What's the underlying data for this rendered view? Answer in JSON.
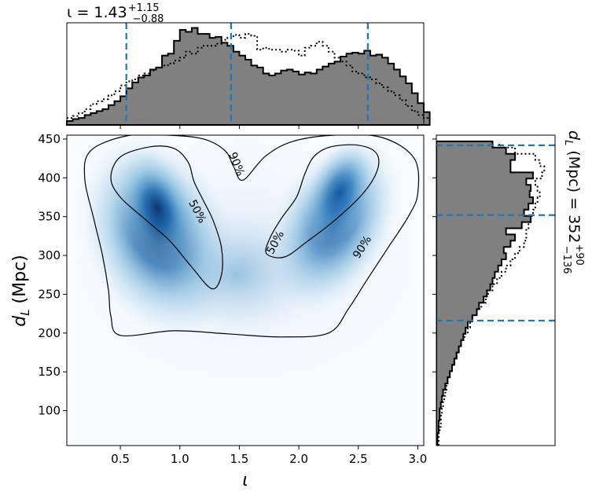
{
  "chart_data": [
    {
      "type": "heatmap",
      "panel": "joint",
      "xlabel": "ι",
      "ylabel_main": "d",
      "ylabel_sub": "L",
      "ylabel_unit": " (Mpc)",
      "xlim": [
        0.05,
        3.05
      ],
      "ylim": [
        55,
        455
      ],
      "xticks": [
        0.5,
        1.0,
        1.5,
        2.0,
        2.5,
        3.0
      ],
      "xtick_labels": [
        "0.5",
        "1.0",
        "1.5",
        "2.0",
        "2.5",
        "3.0"
      ],
      "yticks": [
        100,
        150,
        200,
        250,
        300,
        350,
        400,
        450
      ],
      "ytick_labels": [
        "100",
        "150",
        "200",
        "250",
        "300",
        "350",
        "400",
        "450"
      ],
      "colormap": "Blues",
      "density_peaks": [
        {
          "x": 0.82,
          "y": 365,
          "weight": 1.0
        },
        {
          "x": 2.3,
          "y": 390,
          "weight": 0.82
        }
      ],
      "contours": [
        {
          "label": "50%",
          "closed_regions": [
            [
              [
                1.27,
                257
              ],
              [
                1.1,
                285
              ],
              [
                0.92,
                318
              ],
              [
                0.72,
                345
              ],
              [
                0.5,
                375
              ],
              [
                0.42,
                400
              ],
              [
                0.5,
                427
              ],
              [
                0.75,
                440
              ],
              [
                0.95,
                438
              ],
              [
                1.07,
                420
              ],
              [
                1.12,
                395
              ],
              [
                1.2,
                370
              ],
              [
                1.28,
                345
              ],
              [
                1.35,
                310
              ],
              [
                1.35,
                275
              ]
            ],
            [
              [
                1.88,
                298
              ],
              [
                2.07,
                318
              ],
              [
                2.3,
                345
              ],
              [
                2.54,
                380
              ],
              [
                2.66,
                410
              ],
              [
                2.65,
                432
              ],
              [
                2.5,
                442
              ],
              [
                2.27,
                440
              ],
              [
                2.13,
                428
              ],
              [
                2.05,
                405
              ],
              [
                1.98,
                375
              ],
              [
                1.85,
                347
              ],
              [
                1.75,
                320
              ],
              [
                1.73,
                302
              ]
            ]
          ]
        },
        {
          "label": "90%",
          "closed_regions": [
            [
              [
                0.5,
                197
              ],
              [
                0.95,
                203
              ],
              [
                1.4,
                199
              ],
              [
                1.85,
                195
              ],
              [
                2.25,
                200
              ],
              [
                2.42,
                232
              ],
              [
                2.57,
                268
              ],
              [
                2.75,
                310
              ],
              [
                2.92,
                350
              ],
              [
                3.0,
                380
              ],
              [
                2.97,
                425
              ],
              [
                2.7,
                452
              ],
              [
                2.3,
                455
              ],
              [
                1.95,
                447
              ],
              [
                1.72,
                428
              ],
              [
                1.53,
                397
              ],
              [
                1.45,
                415
              ],
              [
                1.38,
                435
              ],
              [
                1.2,
                450
              ],
              [
                0.9,
                455
              ],
              [
                0.55,
                454
              ],
              [
                0.25,
                435
              ],
              [
                0.2,
                400
              ],
              [
                0.28,
                345
              ],
              [
                0.35,
                300
              ],
              [
                0.4,
                255
              ],
              [
                0.42,
                222
              ]
            ]
          ]
        }
      ]
    },
    {
      "type": "histogram",
      "panel": "top-marginal",
      "title_main": "ι = 1.43",
      "title_sup": "+1.15",
      "title_sub": "−0.88",
      "median": 1.43,
      "lower": 0.55,
      "upper": 2.58,
      "bin_width": 0.05,
      "x_start": 0.05,
      "series": [
        {
          "style": "filled",
          "values": [
            0.04,
            0.06,
            0.07,
            0.1,
            0.12,
            0.14,
            0.16,
            0.2,
            0.24,
            0.29,
            0.37,
            0.43,
            0.48,
            0.5,
            0.56,
            0.58,
            0.7,
            0.72,
            0.85,
            0.96,
            0.94,
            0.98,
            0.92,
            0.92,
            0.88,
            0.89,
            0.83,
            0.8,
            0.74,
            0.7,
            0.66,
            0.6,
            0.58,
            0.52,
            0.5,
            0.52,
            0.55,
            0.56,
            0.54,
            0.51,
            0.53,
            0.52,
            0.56,
            0.59,
            0.62,
            0.64,
            0.69,
            0.72,
            0.73,
            0.72,
            0.75,
            0.7,
            0.71,
            0.68,
            0.62,
            0.56,
            0.49,
            0.42,
            0.32,
            0.22,
            0.13
          ]
        },
        {
          "style": "dotted",
          "values": [
            0.07,
            0.09,
            0.12,
            0.16,
            0.21,
            0.24,
            0.26,
            0.3,
            0.34,
            0.4,
            0.44,
            0.46,
            0.5,
            0.52,
            0.55,
            0.58,
            0.6,
            0.62,
            0.65,
            0.68,
            0.74,
            0.72,
            0.78,
            0.8,
            0.8,
            0.82,
            0.86,
            0.88,
            0.91,
            0.88,
            0.92,
            0.9,
            0.76,
            0.78,
            0.76,
            0.76,
            0.74,
            0.76,
            0.75,
            0.7,
            0.78,
            0.8,
            0.84,
            0.8,
            0.74,
            0.68,
            0.64,
            0.6,
            0.54,
            0.52,
            0.48,
            0.46,
            0.42,
            0.38,
            0.34,
            0.3,
            0.25,
            0.19,
            0.14,
            0.1,
            0.07
          ]
        }
      ],
      "quantile_lines": [
        0.55,
        1.43,
        2.58
      ]
    },
    {
      "type": "histogram",
      "panel": "right-marginal",
      "orientation": "horizontal",
      "side_label_main": "d",
      "side_label_sub": "L",
      "side_label_rest": " (Mpc) = 352",
      "side_label_sup": "+90",
      "side_label_sub2": "−136",
      "median": 352,
      "lower": 216,
      "upper": 442,
      "bin_height": 8,
      "y_start": 55,
      "series": [
        {
          "style": "filled",
          "values": [
            0.01,
            0.01,
            0.02,
            0.02,
            0.03,
            0.03,
            0.04,
            0.05,
            0.06,
            0.08,
            0.1,
            0.12,
            0.14,
            0.16,
            0.18,
            0.2,
            0.22,
            0.24,
            0.26,
            0.28,
            0.32,
            0.36,
            0.38,
            0.42,
            0.45,
            0.48,
            0.5,
            0.52,
            0.55,
            0.58,
            0.62,
            0.6,
            0.66,
            0.7,
            0.62,
            0.76,
            0.84,
            0.78,
            0.82,
            0.86,
            0.83,
            0.84,
            0.8,
            0.86,
            0.66,
            0.66,
            0.7,
            0.62,
            0.5
          ]
        },
        {
          "style": "dotted",
          "values": [
            0.02,
            0.02,
            0.03,
            0.04,
            0.04,
            0.05,
            0.06,
            0.07,
            0.08,
            0.09,
            0.1,
            0.12,
            0.14,
            0.16,
            0.18,
            0.2,
            0.22,
            0.25,
            0.28,
            0.3,
            0.32,
            0.36,
            0.4,
            0.44,
            0.46,
            0.5,
            0.54,
            0.58,
            0.62,
            0.66,
            0.7,
            0.74,
            0.78,
            0.8,
            0.8,
            0.82,
            0.84,
            0.86,
            0.88,
            0.9,
            0.92,
            0.9,
            0.88,
            0.94,
            0.96,
            0.92,
            0.88,
            0.7,
            0.56
          ]
        }
      ],
      "quantile_lines": [
        216,
        352,
        442
      ]
    }
  ],
  "colors": {
    "contour": "#000000",
    "hist_fill": "#808080",
    "quantile_line": "#1f77b4",
    "heat_low": "#f7fbff",
    "heat_high": "#08306b"
  }
}
